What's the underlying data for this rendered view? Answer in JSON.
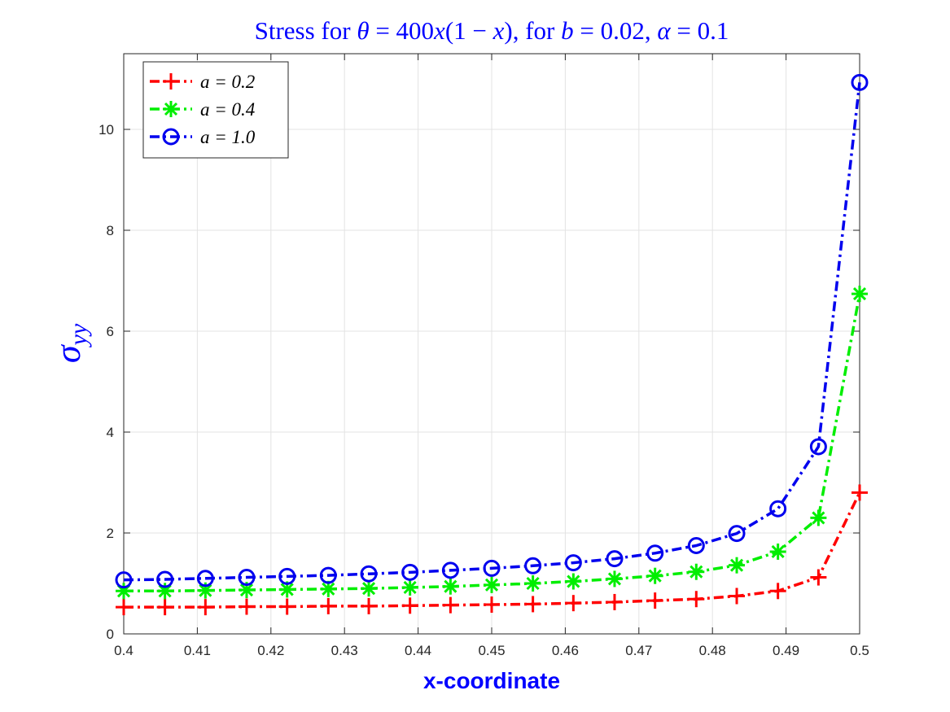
{
  "chart_data": {
    "type": "line",
    "title": "Stress for θ = 400x(1 − x), for b = 0.02, α = 0.1",
    "xlabel": "x-coordinate",
    "ylabel": "σ",
    "ylabel_sub": "yy",
    "xlim": [
      0.4,
      0.5
    ],
    "ylim": [
      0,
      11.5
    ],
    "xticks": [
      0.4,
      0.41,
      0.42,
      0.43,
      0.44,
      0.45,
      0.46,
      0.47,
      0.48,
      0.49,
      0.5
    ],
    "xtick_labels": [
      "0.4",
      "0.41",
      "0.42",
      "0.43",
      "0.44",
      "0.45",
      "0.46",
      "0.47",
      "0.48",
      "0.49",
      "0.5"
    ],
    "yticks": [
      0,
      2,
      4,
      6,
      8,
      10
    ],
    "ytick_labels": [
      "0",
      "2",
      "4",
      "6",
      "8",
      "10"
    ],
    "grid": true,
    "legend_position": "top-left",
    "x": [
      0.4,
      0.4056,
      0.4111,
      0.4167,
      0.4222,
      0.4278,
      0.4333,
      0.4389,
      0.4444,
      0.45,
      0.4556,
      0.4611,
      0.4667,
      0.4722,
      0.4778,
      0.4833,
      0.4889,
      0.4944,
      0.5
    ],
    "series": [
      {
        "name": "a = 0.2",
        "color": "#ff0000",
        "marker": "plus",
        "values": [
          0.53,
          0.53,
          0.53,
          0.54,
          0.54,
          0.55,
          0.55,
          0.56,
          0.57,
          0.58,
          0.59,
          0.61,
          0.63,
          0.66,
          0.69,
          0.75,
          0.85,
          1.12,
          2.8
        ]
      },
      {
        "name": "a = 0.4",
        "color": "#00ee00",
        "marker": "asterisk",
        "values": [
          0.85,
          0.85,
          0.86,
          0.87,
          0.88,
          0.89,
          0.9,
          0.92,
          0.94,
          0.97,
          1.0,
          1.04,
          1.09,
          1.15,
          1.23,
          1.36,
          1.63,
          2.3,
          6.74
        ]
      },
      {
        "name": "a = 1.0",
        "color": "#0000ee",
        "marker": "circle",
        "values": [
          1.07,
          1.08,
          1.1,
          1.12,
          1.14,
          1.16,
          1.19,
          1.22,
          1.26,
          1.3,
          1.35,
          1.41,
          1.49,
          1.6,
          1.75,
          1.99,
          2.48,
          3.71,
          10.93
        ]
      }
    ]
  }
}
